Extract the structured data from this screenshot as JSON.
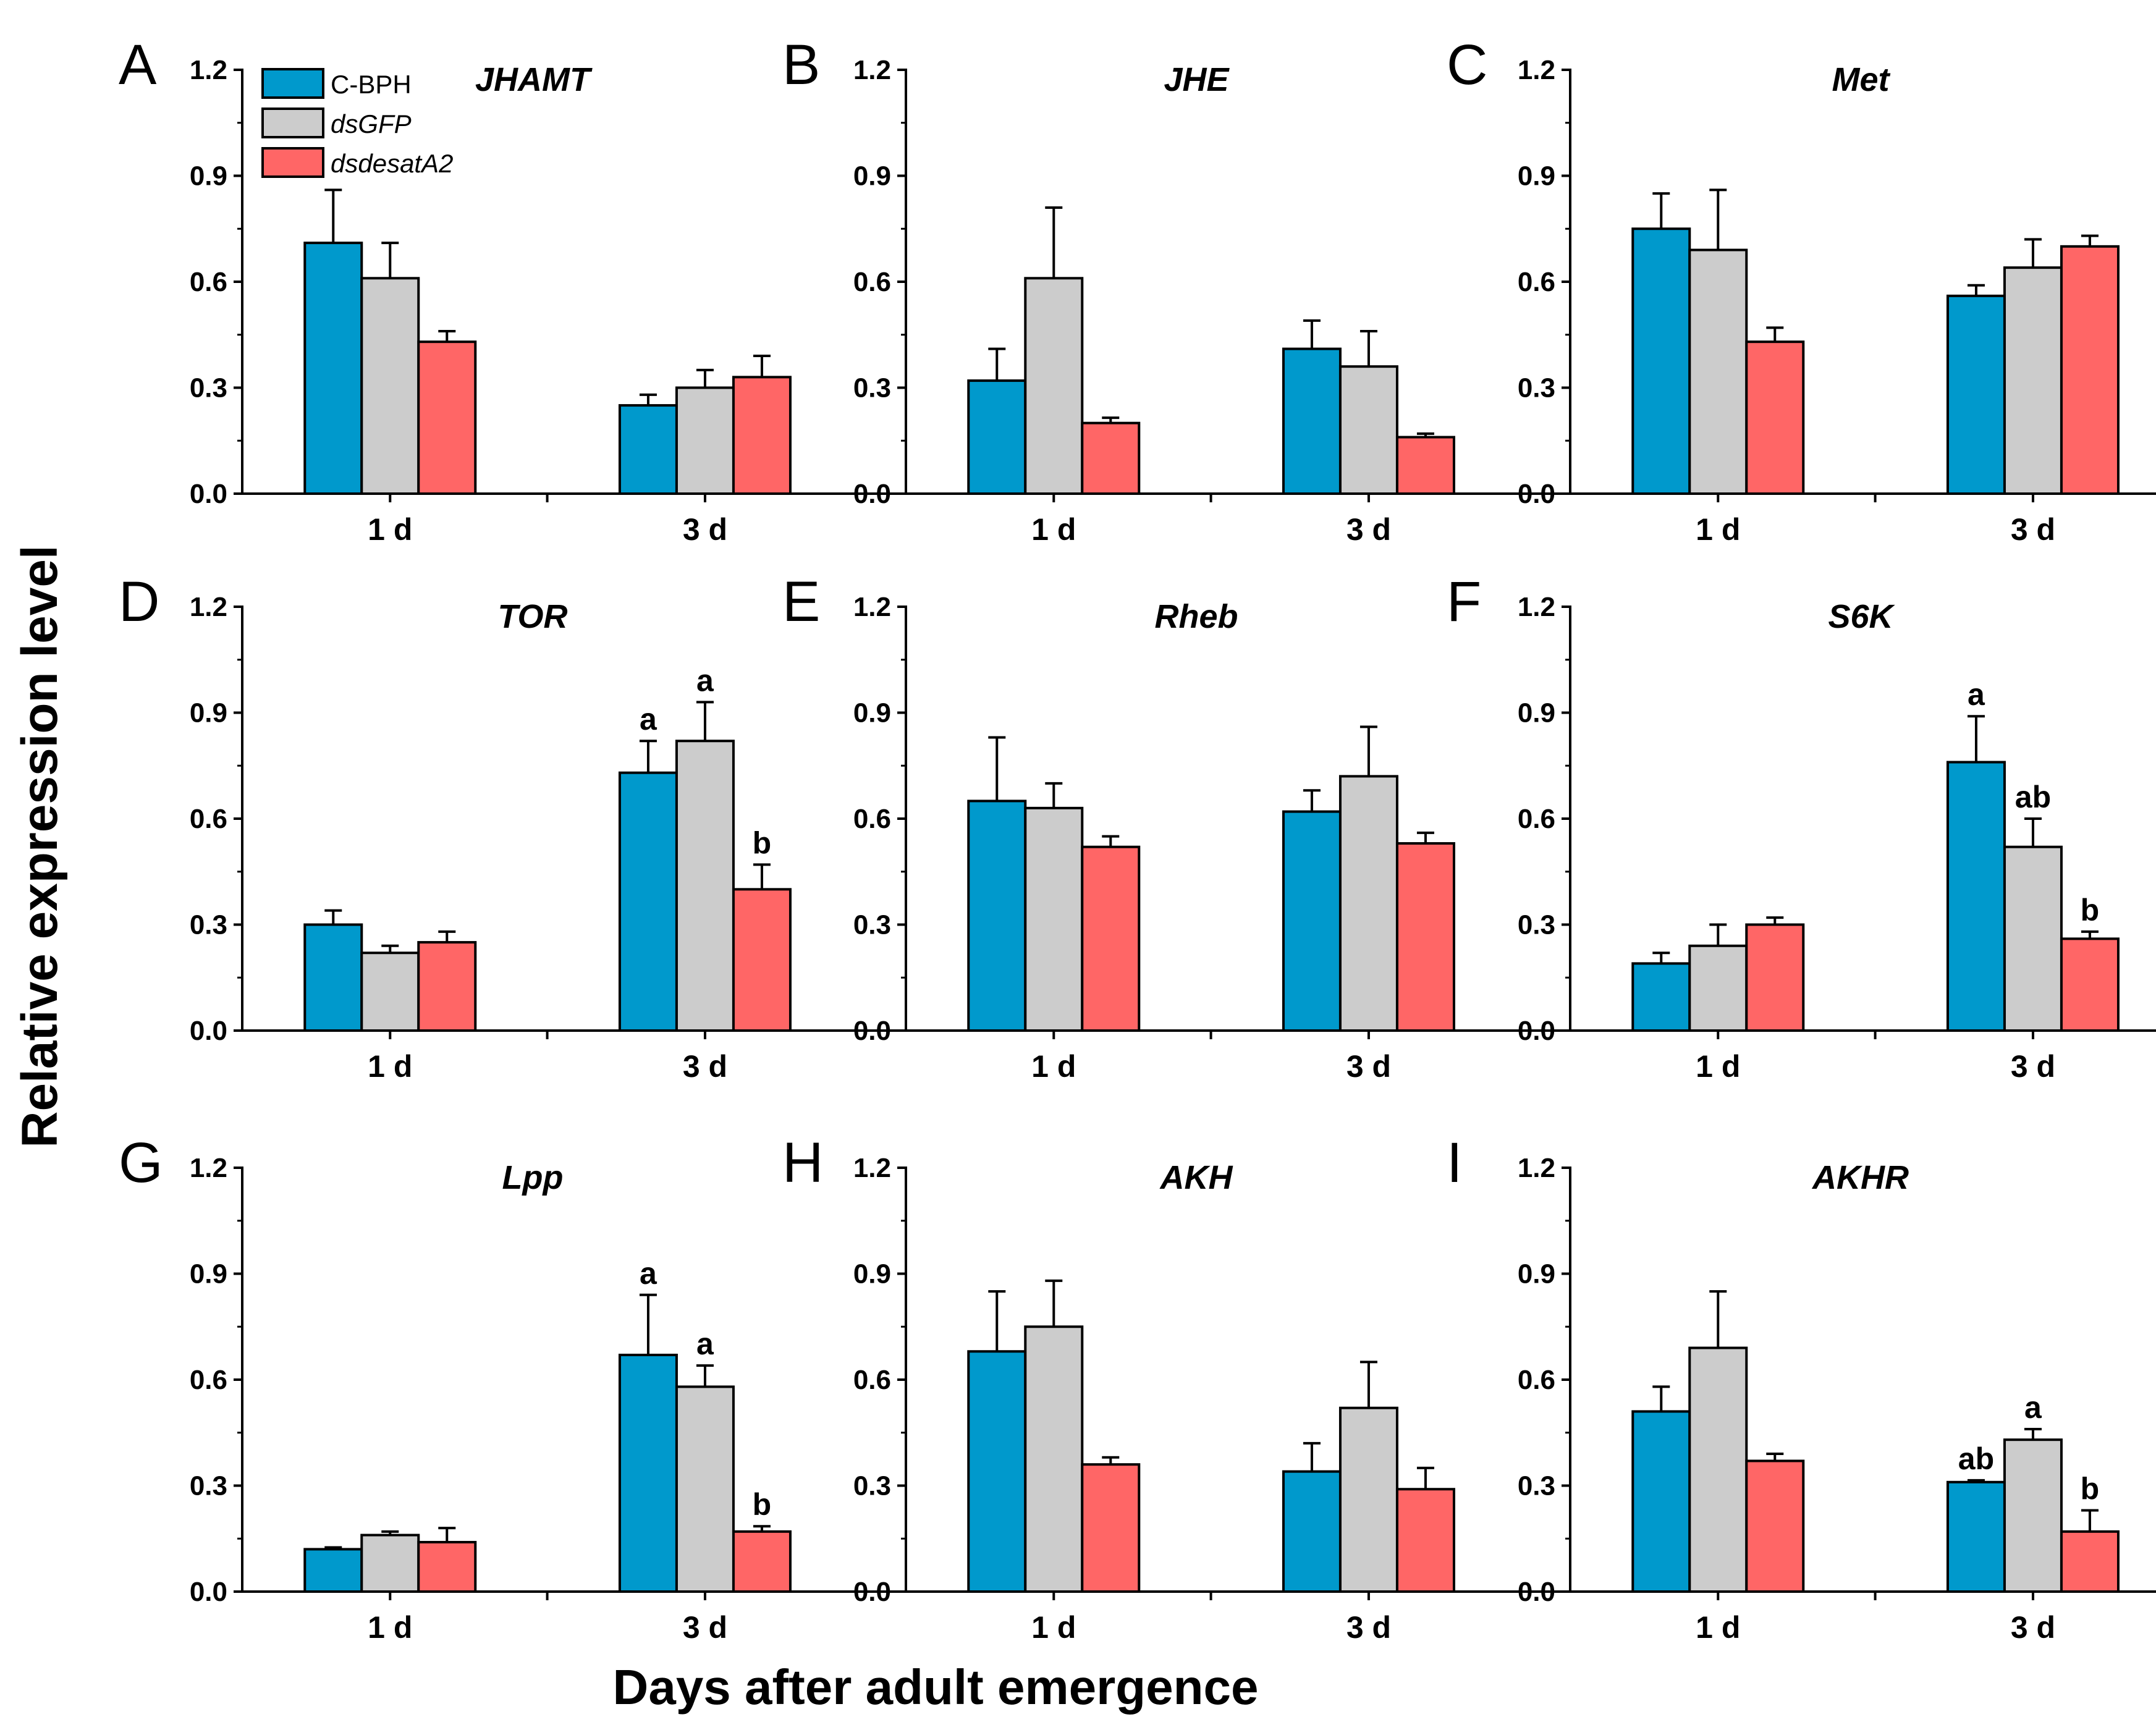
{
  "figure": {
    "y_axis_title": "Relative expression level",
    "x_axis_title": "Days after adult emergence"
  },
  "legend": [
    {
      "label": "C-BPH",
      "color": "#0099cc",
      "italic": false
    },
    {
      "label": "dsGFP",
      "color": "#cccccc",
      "italic": true
    },
    {
      "label": "dsdesatA2",
      "color": "#ff6666",
      "italic": true
    }
  ],
  "chart_data": [
    {
      "type": "bar",
      "panel": "A",
      "title": "JHAMT",
      "categories": [
        "1 d",
        "3 d"
      ],
      "ylim": [
        0,
        1.2
      ],
      "yticks": [
        "0.0",
        "0.3",
        "0.6",
        "0.9",
        "1.2"
      ],
      "series": [
        {
          "name": "C-BPH",
          "values": [
            0.71,
            0.25
          ],
          "errors": [
            0.15,
            0.03
          ]
        },
        {
          "name": "dsGFP",
          "values": [
            0.61,
            0.3
          ],
          "errors": [
            0.1,
            0.05
          ]
        },
        {
          "name": "dsdesatA2",
          "values": [
            0.43,
            0.33
          ],
          "errors": [
            0.03,
            0.06
          ]
        }
      ],
      "labels": []
    },
    {
      "type": "bar",
      "panel": "B",
      "title": "JHE",
      "categories": [
        "1 d",
        "3 d"
      ],
      "ylim": [
        0,
        1.2
      ],
      "yticks": [
        "0.0",
        "0.3",
        "0.6",
        "0.9",
        "1.2"
      ],
      "series": [
        {
          "name": "C-BPH",
          "values": [
            0.32,
            0.41
          ],
          "errors": [
            0.09,
            0.08
          ]
        },
        {
          "name": "dsGFP",
          "values": [
            0.61,
            0.36
          ],
          "errors": [
            0.2,
            0.1
          ]
        },
        {
          "name": "dsdesatA2",
          "values": [
            0.2,
            0.16
          ],
          "errors": [
            0.015,
            0.01
          ]
        }
      ],
      "labels": []
    },
    {
      "type": "bar",
      "panel": "C",
      "title": "Met",
      "categories": [
        "1 d",
        "3 d"
      ],
      "ylim": [
        0,
        1.2
      ],
      "yticks": [
        "0.0",
        "0.3",
        "0.6",
        "0.9",
        "1.2"
      ],
      "series": [
        {
          "name": "C-BPH",
          "values": [
            0.75,
            0.56
          ],
          "errors": [
            0.1,
            0.03
          ]
        },
        {
          "name": "dsGFP",
          "values": [
            0.69,
            0.64
          ],
          "errors": [
            0.17,
            0.08
          ]
        },
        {
          "name": "dsdesatA2",
          "values": [
            0.43,
            0.7
          ],
          "errors": [
            0.04,
            0.03
          ]
        }
      ],
      "labels": []
    },
    {
      "type": "bar",
      "panel": "D",
      "title": "TOR",
      "categories": [
        "1 d",
        "3 d"
      ],
      "ylim": [
        0,
        1.2
      ],
      "yticks": [
        "0.0",
        "0.3",
        "0.6",
        "0.9",
        "1.2"
      ],
      "series": [
        {
          "name": "C-BPH",
          "values": [
            0.3,
            0.73
          ],
          "errors": [
            0.04,
            0.09
          ]
        },
        {
          "name": "dsGFP",
          "values": [
            0.22,
            0.82
          ],
          "errors": [
            0.02,
            0.11
          ]
        },
        {
          "name": "dsdesatA2",
          "values": [
            0.25,
            0.4
          ],
          "errors": [
            0.03,
            0.07
          ]
        }
      ],
      "labels": [
        [
          null,
          "a"
        ],
        [
          null,
          "a"
        ],
        [
          null,
          "b"
        ]
      ]
    },
    {
      "type": "bar",
      "panel": "E",
      "title": "Rheb",
      "categories": [
        "1 d",
        "3 d"
      ],
      "ylim": [
        0,
        1.2
      ],
      "yticks": [
        "0.0",
        "0.3",
        "0.6",
        "0.9",
        "1.2"
      ],
      "series": [
        {
          "name": "C-BPH",
          "values": [
            0.65,
            0.62
          ],
          "errors": [
            0.18,
            0.06
          ]
        },
        {
          "name": "dsGFP",
          "values": [
            0.63,
            0.72
          ],
          "errors": [
            0.07,
            0.14
          ]
        },
        {
          "name": "dsdesatA2",
          "values": [
            0.52,
            0.53
          ],
          "errors": [
            0.03,
            0.03
          ]
        }
      ],
      "labels": []
    },
    {
      "type": "bar",
      "panel": "F",
      "title": "S6K",
      "categories": [
        "1 d",
        "3 d"
      ],
      "ylim": [
        0,
        1.2
      ],
      "yticks": [
        "0.0",
        "0.3",
        "0.6",
        "0.9",
        "1.2"
      ],
      "series": [
        {
          "name": "C-BPH",
          "values": [
            0.19,
            0.76
          ],
          "errors": [
            0.03,
            0.13
          ]
        },
        {
          "name": "dsGFP",
          "values": [
            0.24,
            0.52
          ],
          "errors": [
            0.06,
            0.08
          ]
        },
        {
          "name": "dsdesatA2",
          "values": [
            0.3,
            0.26
          ],
          "errors": [
            0.02,
            0.02
          ]
        }
      ],
      "labels": [
        [
          null,
          "a"
        ],
        [
          null,
          "ab"
        ],
        [
          null,
          "b"
        ]
      ]
    },
    {
      "type": "bar",
      "panel": "G",
      "title": "Lpp",
      "categories": [
        "1 d",
        "3 d"
      ],
      "ylim": [
        0,
        1.2
      ],
      "yticks": [
        "0.0",
        "0.3",
        "0.6",
        "0.9",
        "1.2"
      ],
      "series": [
        {
          "name": "C-BPH",
          "values": [
            0.12,
            0.67
          ],
          "errors": [
            0.005,
            0.17
          ]
        },
        {
          "name": "dsGFP",
          "values": [
            0.16,
            0.58
          ],
          "errors": [
            0.01,
            0.06
          ]
        },
        {
          "name": "dsdesatA2",
          "values": [
            0.14,
            0.17
          ],
          "errors": [
            0.04,
            0.015
          ]
        }
      ],
      "labels": [
        [
          null,
          "a"
        ],
        [
          null,
          "a"
        ],
        [
          null,
          "b"
        ]
      ]
    },
    {
      "type": "bar",
      "panel": "H",
      "title": "AKH",
      "categories": [
        "1 d",
        "3 d"
      ],
      "ylim": [
        0,
        1.2
      ],
      "yticks": [
        "0.0",
        "0.3",
        "0.6",
        "0.9",
        "1.2"
      ],
      "series": [
        {
          "name": "C-BPH",
          "values": [
            0.68,
            0.34
          ],
          "errors": [
            0.17,
            0.08
          ]
        },
        {
          "name": "dsGFP",
          "values": [
            0.75,
            0.52
          ],
          "errors": [
            0.13,
            0.13
          ]
        },
        {
          "name": "dsdesatA2",
          "values": [
            0.36,
            0.29
          ],
          "errors": [
            0.02,
            0.06
          ]
        }
      ],
      "labels": []
    },
    {
      "type": "bar",
      "panel": "I",
      "title": "AKHR",
      "categories": [
        "1 d",
        "3 d"
      ],
      "ylim": [
        0,
        1.2
      ],
      "yticks": [
        "0.0",
        "0.3",
        "0.6",
        "0.9",
        "1.2"
      ],
      "series": [
        {
          "name": "C-BPH",
          "values": [
            0.51,
            0.31
          ],
          "errors": [
            0.07,
            0.005
          ]
        },
        {
          "name": "dsGFP",
          "values": [
            0.69,
            0.43
          ],
          "errors": [
            0.16,
            0.03
          ]
        },
        {
          "name": "dsdesatA2",
          "values": [
            0.37,
            0.17
          ],
          "errors": [
            0.02,
            0.06
          ]
        }
      ],
      "labels": [
        [
          null,
          "ab"
        ],
        [
          null,
          "a"
        ],
        [
          null,
          "b"
        ]
      ]
    }
  ]
}
